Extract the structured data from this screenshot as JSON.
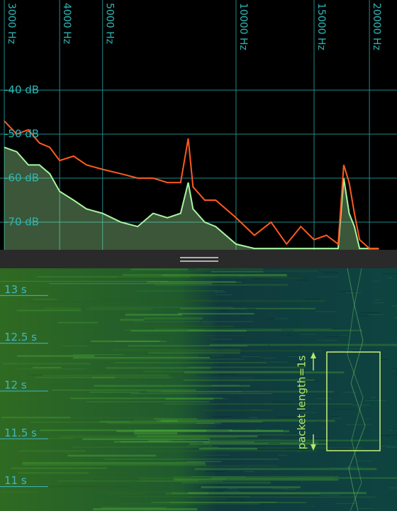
{
  "chart_data": [
    {
      "type": "line",
      "xscale": "log",
      "grid": true,
      "x": [
        3000,
        3200,
        3400,
        3600,
        3800,
        4000,
        4300,
        4600,
        5000,
        5500,
        6000,
        6500,
        7000,
        7500,
        7800,
        8000,
        8500,
        9000,
        10000,
        11000,
        12000,
        13000,
        14000,
        15000,
        16000,
        17000,
        17500,
        18000,
        18500,
        19000,
        20000,
        21000
      ],
      "series": [
        {
          "color": "#ff5a1f",
          "values": [
            -47,
            -50,
            -49,
            -52,
            -53,
            -56,
            -55,
            -57,
            -58,
            -59,
            -60,
            -60,
            -61,
            -61,
            -51,
            -62,
            -65,
            -65,
            -69,
            -73,
            -70,
            -75,
            -71,
            -74,
            -73,
            -75,
            -57,
            -61,
            -68,
            -74,
            -76,
            -76
          ]
        },
        {
          "color": "#a8f5a0",
          "values": [
            -53,
            -54,
            -57,
            -57,
            -59,
            -63,
            -65,
            -67,
            -68,
            -70,
            -71,
            -68,
            -69,
            -68,
            -61,
            -67,
            -70,
            -71,
            -75,
            -76,
            -76,
            -76,
            -76,
            -76,
            -76,
            -76,
            -60,
            -68,
            -71,
            -76,
            -76,
            -76
          ]
        }
      ],
      "xlim": [
        2934,
        23080
      ],
      "xticks": [
        {
          "value": 3000,
          "label": "3000 Hz"
        },
        {
          "value": 4000,
          "label": "4000 Hz"
        },
        {
          "value": 5000,
          "label": "5000 Hz"
        },
        {
          "value": 10000,
          "label": "10000 Hz"
        },
        {
          "value": 15000,
          "label": "15000 Hz"
        },
        {
          "value": 20000,
          "label": "20000 Hz"
        }
      ],
      "ylim": [
        -76.3,
        -19.5
      ],
      "yticks": [
        {
          "value": -40,
          "label": "-40 dB"
        },
        {
          "value": -50,
          "label": "-50 dB"
        },
        {
          "value": -60,
          "label": "-60 dB"
        },
        {
          "value": -70,
          "label": "-70 dB"
        }
      ]
    },
    {
      "type": "spectrogram",
      "ylim": [
        10.7,
        13.24
      ],
      "yticks": [
        {
          "value": 13,
          "label": "13 s"
        },
        {
          "value": 12.5,
          "label": "12.5 s"
        },
        {
          "value": 12,
          "label": "12 s"
        },
        {
          "value": 11.5,
          "label": "11.5 s"
        },
        {
          "value": 11,
          "label": "11 s"
        }
      ],
      "annotation": "packet length=1s"
    }
  ]
}
